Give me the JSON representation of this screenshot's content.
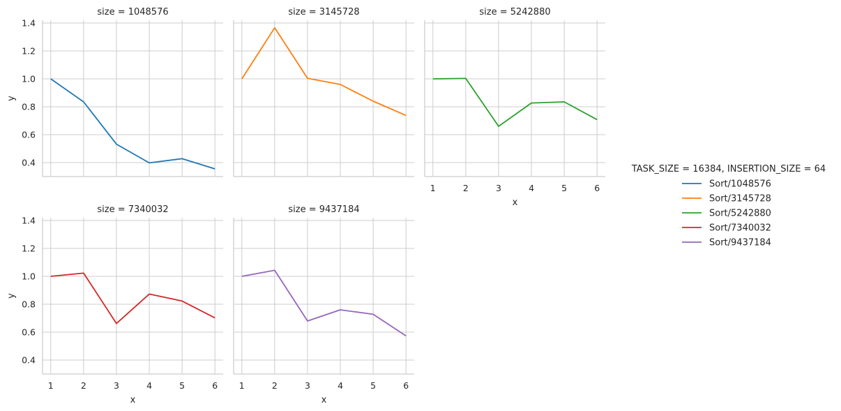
{
  "chart_data": {
    "type": "line",
    "layout": "facet-grid",
    "xlabel": "x",
    "ylabel": "y",
    "xlim": [
      0.75,
      6.25
    ],
    "ylim": [
      0.3,
      1.42
    ],
    "xticks": [
      1,
      2,
      3,
      4,
      5,
      6
    ],
    "yticks": [
      0.4,
      0.6,
      0.8,
      1.0,
      1.2,
      1.4
    ],
    "ytick_labels": [
      "0.4",
      "0.6",
      "0.8",
      "1.0",
      "1.2",
      "1.4"
    ],
    "grid": true,
    "legend": {
      "title": "TASK_SIZE = 16384, INSERTION_SIZE = 64",
      "placement": "center-right"
    },
    "panels": [
      {
        "title": "size = 1048576",
        "series": {
          "name": "Sort/1048576",
          "color": "#1f77b4",
          "x": [
            1,
            2,
            3,
            4,
            5,
            6
          ],
          "y": [
            1.0,
            0.835,
            0.532,
            0.398,
            0.428,
            0.355
          ]
        }
      },
      {
        "title": "size = 3145728",
        "series": {
          "name": "Sort/3145728",
          "color": "#ff7f0e",
          "x": [
            1,
            2,
            3,
            4,
            5,
            6
          ],
          "y": [
            1.0,
            1.366,
            1.004,
            0.96,
            0.84,
            0.738
          ]
        }
      },
      {
        "title": "size = 5242880",
        "series": {
          "name": "Sort/5242880",
          "color": "#2ca02c",
          "x": [
            1,
            2,
            3,
            4,
            5,
            6
          ],
          "y": [
            1.0,
            1.003,
            0.66,
            0.827,
            0.835,
            0.708
          ]
        }
      },
      {
        "title": "size = 7340032",
        "series": {
          "name": "Sort/7340032",
          "color": "#d62728",
          "x": [
            1,
            2,
            3,
            4,
            5,
            6
          ],
          "y": [
            1.0,
            1.023,
            0.662,
            0.873,
            0.823,
            0.702
          ]
        }
      },
      {
        "title": "size = 9437184",
        "series": {
          "name": "Sort/9437184",
          "color": "#9467bd",
          "x": [
            1,
            2,
            3,
            4,
            5,
            6
          ],
          "y": [
            1.0,
            1.043,
            0.68,
            0.76,
            0.728,
            0.573
          ]
        }
      }
    ]
  }
}
